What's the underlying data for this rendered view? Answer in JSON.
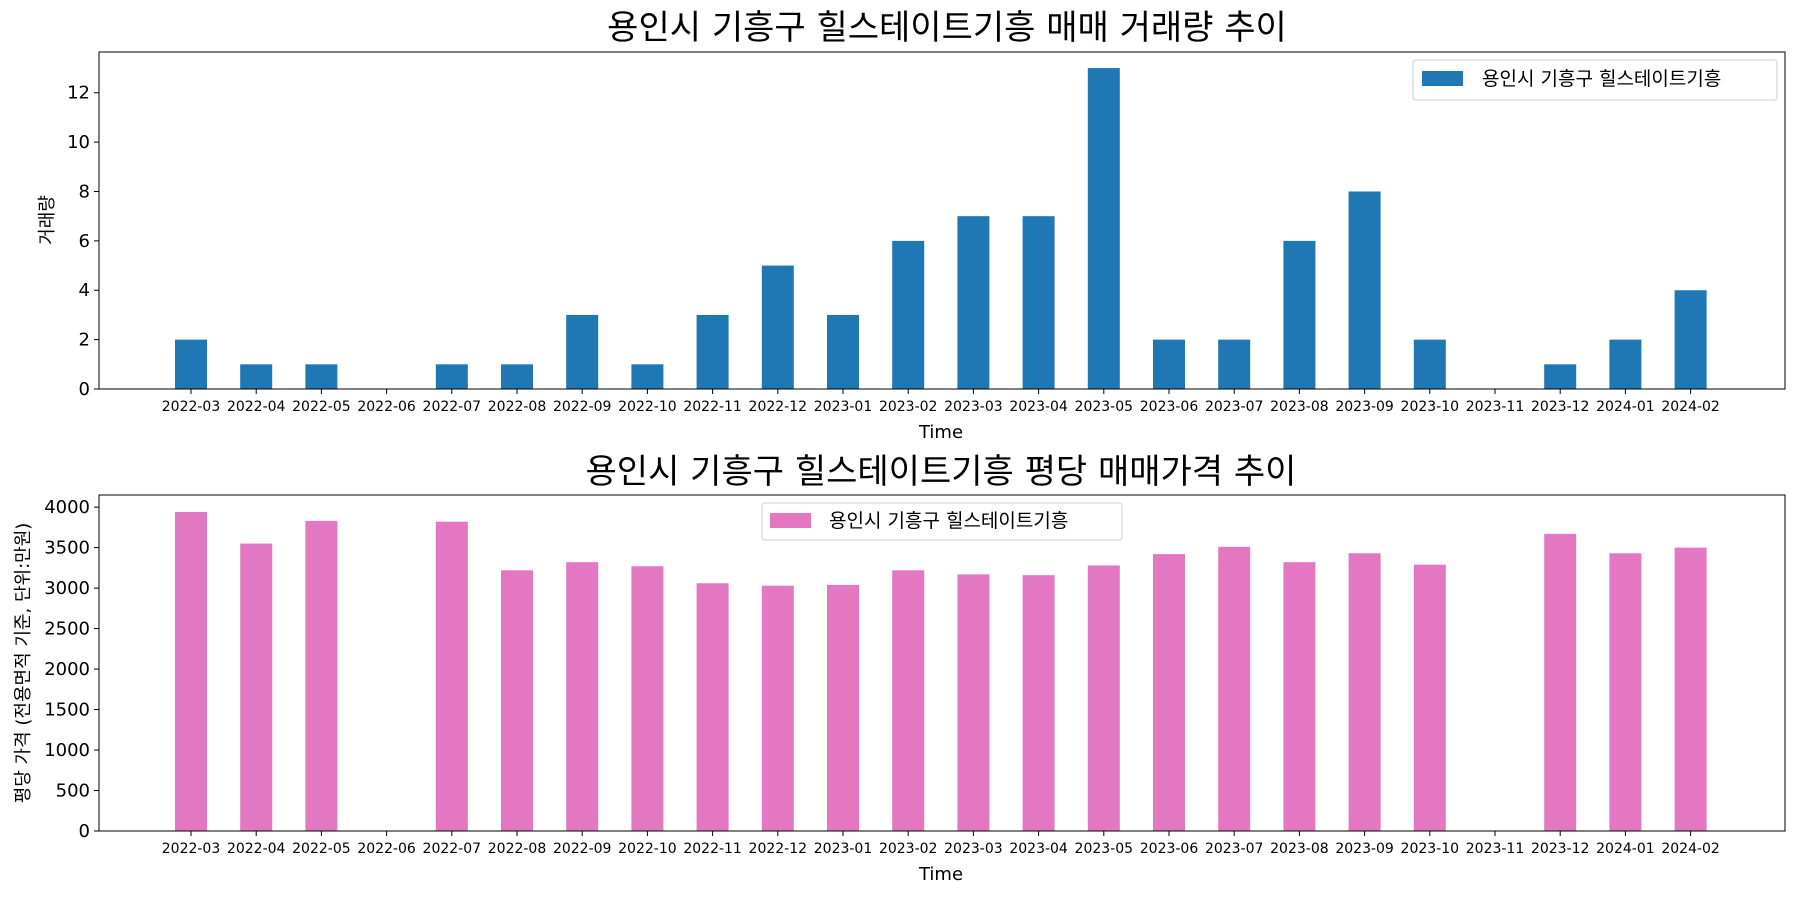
{
  "chart_data": [
    {
      "type": "bar",
      "title": "용인시 기흥구 힐스테이트기흥 매매 거래량 추이",
      "xlabel": "Time",
      "ylabel": "거래량",
      "ylim": [
        0,
        13.65
      ],
      "yticks": [
        0,
        2,
        4,
        6,
        8,
        10,
        12
      ],
      "grid": false,
      "legend_position": "top-right",
      "color": "#1f77b4",
      "categories": [
        "2022-03",
        "2022-04",
        "2022-05",
        "2022-06",
        "2022-07",
        "2022-08",
        "2022-09",
        "2022-10",
        "2022-11",
        "2022-12",
        "2023-01",
        "2023-02",
        "2023-03",
        "2023-04",
        "2023-05",
        "2023-06",
        "2023-07",
        "2023-08",
        "2023-09",
        "2023-10",
        "2023-11",
        "2023-12",
        "2024-01",
        "2024-02"
      ],
      "series": [
        {
          "name": "용인시 기흥구 힐스테이트기흥",
          "values": [
            2,
            1,
            1,
            0,
            1,
            1,
            3,
            1,
            3,
            5,
            3,
            6,
            7,
            7,
            13,
            2,
            2,
            6,
            8,
            2,
            0,
            1,
            2,
            4
          ]
        }
      ]
    },
    {
      "type": "bar",
      "title": "용인시 기흥구 힐스테이트기흥 평당 매매가격 추이",
      "xlabel": "Time",
      "ylabel": "평당 가격 (전용면적 기준, 단위:만원)",
      "ylim": [
        0,
        4150
      ],
      "yticks": [
        0,
        500,
        1000,
        1500,
        2000,
        2500,
        3000,
        3500,
        4000
      ],
      "grid": false,
      "legend_position": "top-center",
      "color": "#e377c2",
      "categories": [
        "2022-03",
        "2022-04",
        "2022-05",
        "2022-06",
        "2022-07",
        "2022-08",
        "2022-09",
        "2022-10",
        "2022-11",
        "2022-12",
        "2023-01",
        "2023-02",
        "2023-03",
        "2023-04",
        "2023-05",
        "2023-06",
        "2023-07",
        "2023-08",
        "2023-09",
        "2023-10",
        "2023-11",
        "2023-12",
        "2024-01",
        "2024-02"
      ],
      "series": [
        {
          "name": "용인시 기흥구 힐스테이트기흥",
          "values": [
            3940,
            3550,
            3830,
            null,
            3820,
            3220,
            3320,
            3270,
            3060,
            3030,
            3040,
            3220,
            3170,
            3160,
            3280,
            3420,
            3510,
            3320,
            3430,
            3290,
            null,
            3670,
            3430,
            3500
          ]
        }
      ]
    }
  ]
}
